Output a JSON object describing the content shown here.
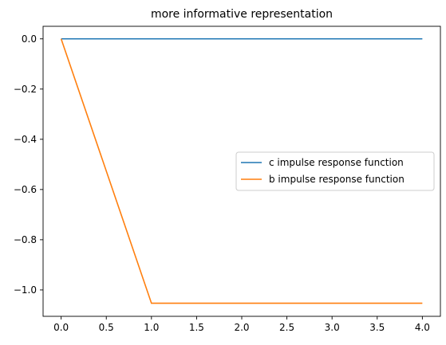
{
  "chart_data": {
    "type": "line",
    "title": "more informative representation",
    "xlabel": "",
    "ylabel": "",
    "xlim": [
      -0.2,
      4.2
    ],
    "ylim": [
      -1.105,
      0.05
    ],
    "xticks": [
      0.0,
      0.5,
      1.0,
      1.5,
      2.0,
      2.5,
      3.0,
      3.5,
      4.0
    ],
    "xtick_labels": [
      "0.0",
      "0.5",
      "1.0",
      "1.5",
      "2.0",
      "2.5",
      "3.0",
      "3.5",
      "4.0"
    ],
    "yticks": [
      0.0,
      -0.2,
      -0.4,
      -0.6,
      -0.8,
      -1.0
    ],
    "ytick_labels": [
      "0.0",
      "−0.2",
      "−0.4",
      "−0.6",
      "−0.8",
      "−1.0"
    ],
    "grid": false,
    "legend_position": "center-right",
    "series": [
      {
        "name": "c impulse response function",
        "color": "#1f77b4",
        "x": [
          0,
          1,
          2,
          3,
          4
        ],
        "y": [
          0,
          0,
          0,
          0,
          0
        ]
      },
      {
        "name": "b impulse response function",
        "color": "#ff7f0e",
        "x": [
          0,
          1,
          2,
          3,
          4
        ],
        "y": [
          0,
          -1.053,
          -1.053,
          -1.053,
          -1.053
        ]
      }
    ]
  }
}
